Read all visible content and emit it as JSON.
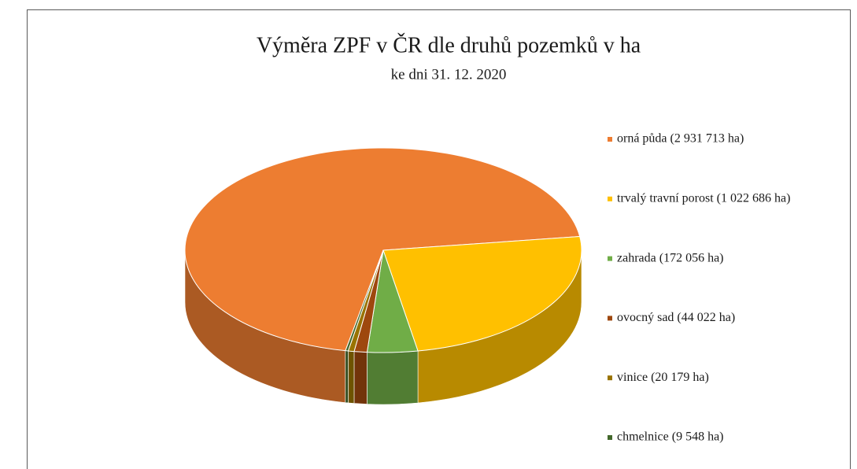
{
  "chart_data": {
    "type": "pie3d",
    "title": "Výměra ZPF v ČR dle druhů pozemků v ha",
    "subtitle": "ke dni 31. 12. 2020",
    "categories": [
      "orná půda (2 931 713 ha)",
      "trvalý travní porost (1 022 686 ha)",
      "zahrada (172 056 ha)",
      "ovocný sad (44 022 ha)",
      "vinice (20 179 ha)",
      "chmelnice (9 548 ha)"
    ],
    "values": [
      2931713,
      1022686,
      172056,
      44022,
      20179,
      9548
    ],
    "colors": [
      "#ED7D31",
      "#FFC000",
      "#70AD47",
      "#9E480E",
      "#997300",
      "#43682B"
    ],
    "legend": "right"
  }
}
